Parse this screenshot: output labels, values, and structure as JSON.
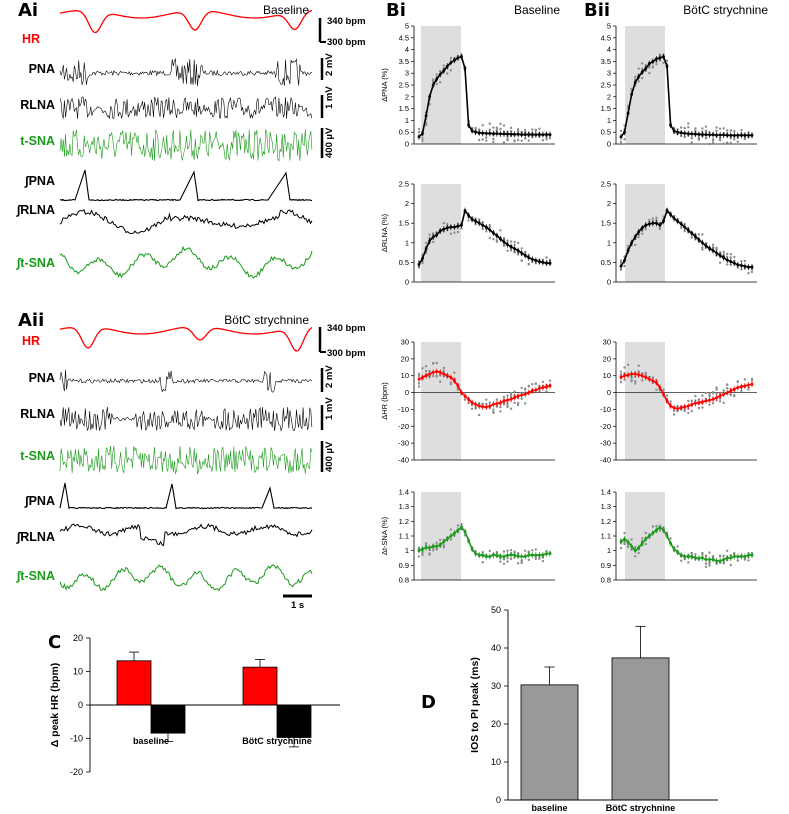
{
  "panel_labels": {
    "ai": "Ai",
    "aii": "Aii",
    "bi": "Bi",
    "bii": "Bii",
    "c": "C",
    "d": "D"
  },
  "traces": {
    "ai_title": "Baseline",
    "aii_title": "BötC strychnine",
    "channels": [
      "HR",
      "PNA",
      "RLNA",
      "t-SNA",
      "∫PNA",
      "∫RLNA",
      "∫t-SNA"
    ],
    "hr_scale_top": "340 bpm",
    "hr_scale_bottom": "300 bpm",
    "pna_scale": "2 mV",
    "rlna_scale": "1 mV",
    "tsna_scale": "400 µV",
    "time_scale": "1 s",
    "colors": {
      "hr": "#ff0000",
      "black": "#000000",
      "green": "#1a9a1a"
    }
  },
  "chart_data": [
    {
      "id": "bi",
      "type": "line",
      "title": "Baseline",
      "shaded_region": "inspiration",
      "subplots": [
        {
          "ylabel": "ΔPNA (%)",
          "ylim": [
            0,
            5
          ],
          "ticks": [
            "0",
            "0.5",
            "1",
            "1.5",
            "2",
            "2.5",
            "3",
            "3.5",
            "4",
            "4.5",
            "5"
          ],
          "color": "#000000",
          "mean": [
            0.3,
            0.45,
            1.2,
            2.0,
            2.5,
            2.75,
            2.95,
            3.1,
            3.3,
            3.45,
            3.55,
            3.65,
            3.7,
            3.2,
            0.8,
            0.55,
            0.5,
            0.48,
            0.46,
            0.45,
            0.45,
            0.44,
            0.44,
            0.43,
            0.43,
            0.42,
            0.42,
            0.41,
            0.41,
            0.4,
            0.4,
            0.4,
            0.4,
            0.4,
            0.4,
            0.4,
            0.4,
            0.4
          ]
        },
        {
          "ylabel": "ΔRLNA (%)",
          "ylim": [
            0,
            2.5
          ],
          "ticks": [
            "0",
            "0.5",
            "1",
            "1.5",
            "2",
            "2.5"
          ],
          "color": "#000000",
          "mean": [
            0.45,
            0.6,
            0.85,
            1.05,
            1.15,
            1.2,
            1.3,
            1.35,
            1.38,
            1.4,
            1.4,
            1.42,
            1.45,
            1.82,
            1.7,
            1.6,
            1.55,
            1.5,
            1.45,
            1.4,
            1.33,
            1.25,
            1.18,
            1.1,
            1.02,
            0.95,
            0.9,
            0.85,
            0.8,
            0.74,
            0.68,
            0.62,
            0.58,
            0.55,
            0.52,
            0.5,
            0.48,
            0.48
          ]
        },
        {
          "ylabel": "ΔHR (bpm)",
          "ylim": [
            -40,
            30
          ],
          "ticks": [
            "-40",
            "-30",
            "-20",
            "-10",
            "0",
            "10",
            "20",
            "30"
          ],
          "color": "#ff0000",
          "mean": [
            8,
            9,
            10,
            11,
            12,
            12.5,
            12,
            11,
            10,
            9,
            7,
            4,
            0,
            -2,
            -4,
            -6,
            -7,
            -8,
            -8.5,
            -8.5,
            -8,
            -7,
            -6.5,
            -6,
            -5,
            -4.5,
            -4,
            -3,
            -2,
            -1.5,
            -1,
            0,
            1,
            1.5,
            2.5,
            3,
            3.5,
            4
          ]
        },
        {
          "ylabel": "Δt-SNA (%)",
          "ylim": [
            0.8,
            1.4
          ],
          "ticks": [
            "0.8",
            "0.9",
            "1",
            "1.1",
            "1.2",
            "1.3",
            "1.4"
          ],
          "color": "#1a9a1a",
          "mean": [
            1.0,
            1.01,
            1.02,
            1.02,
            1.03,
            1.03,
            1.04,
            1.06,
            1.08,
            1.1,
            1.12,
            1.14,
            1.16,
            1.13,
            1.07,
            1.01,
            0.98,
            0.97,
            0.97,
            0.96,
            0.96,
            0.97,
            0.97,
            0.96,
            0.96,
            0.97,
            0.97,
            0.97,
            0.96,
            0.96,
            0.96,
            0.97,
            0.97,
            0.97,
            0.97,
            0.97,
            0.98,
            0.98
          ]
        }
      ]
    },
    {
      "id": "bii",
      "type": "line",
      "title": "BötC strychnine",
      "shaded_region": "inspiration",
      "subplots": [
        {
          "ylabel": "",
          "ylim": [
            0,
            5
          ],
          "ticks": [
            "0",
            "0.5",
            "1",
            "1.5",
            "2",
            "2.5",
            "3",
            "3.5",
            "4",
            "4.5",
            "5"
          ],
          "color": "#000000",
          "mean": [
            0.3,
            0.5,
            1.3,
            2.1,
            2.6,
            2.85,
            3.05,
            3.2,
            3.4,
            3.5,
            3.6,
            3.65,
            3.7,
            3.3,
            0.8,
            0.55,
            0.5,
            0.47,
            0.45,
            0.44,
            0.43,
            0.42,
            0.41,
            0.4,
            0.4,
            0.39,
            0.39,
            0.38,
            0.38,
            0.38,
            0.37,
            0.37,
            0.37,
            0.37,
            0.37,
            0.37,
            0.37,
            0.37
          ]
        },
        {
          "ylabel": "",
          "ylim": [
            0,
            2.5
          ],
          "ticks": [
            "0",
            "0.5",
            "1",
            "1.5",
            "2",
            "2.5"
          ],
          "color": "#000000",
          "mean": [
            0.4,
            0.55,
            0.8,
            1.0,
            1.15,
            1.28,
            1.38,
            1.45,
            1.48,
            1.5,
            1.5,
            1.45,
            1.55,
            1.82,
            1.72,
            1.62,
            1.55,
            1.48,
            1.4,
            1.32,
            1.24,
            1.16,
            1.08,
            1.0,
            0.92,
            0.86,
            0.8,
            0.74,
            0.68,
            0.62,
            0.56,
            0.52,
            0.48,
            0.44,
            0.42,
            0.4,
            0.38,
            0.38
          ]
        },
        {
          "ylabel": "",
          "ylim": [
            -40,
            30
          ],
          "ticks": [
            "-40",
            "-30",
            "-20",
            "-10",
            "0",
            "10",
            "20",
            "30"
          ],
          "color": "#ff0000",
          "mean": [
            9,
            10,
            10.5,
            11,
            11,
            10.5,
            10,
            9,
            8,
            7,
            6,
            3,
            -1,
            -5,
            -8,
            -9,
            -9.5,
            -9,
            -8.5,
            -8,
            -7,
            -6.5,
            -6,
            -5.5,
            -5,
            -4.5,
            -4,
            -3,
            -2,
            -1,
            0,
            1,
            2,
            3,
            3.5,
            4,
            4.5,
            5
          ]
        },
        {
          "ylabel": "",
          "ylim": [
            0.8,
            1.4
          ],
          "ticks": [
            "0.8",
            "0.9",
            "1",
            "1.1",
            "1.2",
            "1.3",
            "1.4"
          ],
          "color": "#1a9a1a",
          "mean": [
            1.06,
            1.08,
            1.06,
            1.03,
            1.0,
            1.02,
            1.05,
            1.08,
            1.1,
            1.12,
            1.14,
            1.16,
            1.14,
            1.1,
            1.05,
            1.01,
            0.99,
            0.97,
            0.96,
            0.96,
            0.96,
            0.95,
            0.95,
            0.95,
            0.94,
            0.94,
            0.94,
            0.93,
            0.93,
            0.94,
            0.95,
            0.95,
            0.96,
            0.96,
            0.96,
            0.96,
            0.97,
            0.97
          ]
        }
      ]
    },
    {
      "id": "c",
      "type": "bar",
      "ylabel": "Δ peak HR (bpm)",
      "ylim": [
        -20,
        20
      ],
      "ticks": [
        "-20",
        "-10",
        "0",
        "10",
        "20"
      ],
      "categories": [
        "baseline",
        "BötC strychnine"
      ],
      "series": [
        {
          "color": "#ff0000",
          "values": [
            13.2,
            11.3
          ],
          "errors": [
            2.6,
            2.3
          ]
        },
        {
          "color": "#000000",
          "values": [
            -8.4,
            -9.7
          ],
          "errors": [
            2.5,
            2.8
          ]
        }
      ]
    },
    {
      "id": "d",
      "type": "bar",
      "ylabel": "IOS to PI peak (ms)",
      "ylim": [
        0,
        50
      ],
      "ticks": [
        "0",
        "10",
        "20",
        "30",
        "40",
        "50"
      ],
      "categories": [
        "baseline",
        "BötC strychnine"
      ],
      "series": [
        {
          "color": "#999999",
          "values": [
            30.3,
            37.4
          ],
          "errors": [
            4.7,
            8.3
          ]
        }
      ]
    }
  ]
}
